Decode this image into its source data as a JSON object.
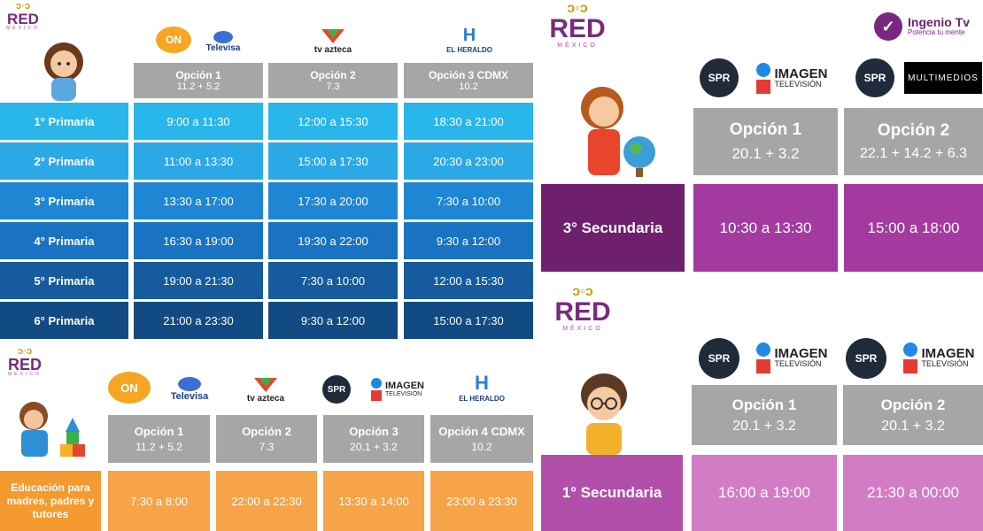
{
  "brand": {
    "red_word": "RED",
    "red_sub": "MÉXICO",
    "ingenio_title": "Ingenio Tv",
    "ingenio_tagline": "Potencia tu mente"
  },
  "channels": {
    "televisa": "Televisa",
    "tvazteca": "tv azteca",
    "heraldo": "EL HERALDO",
    "imagen_line1": "IMAGEN",
    "imagen_line2": "TELEVISIÓN",
    "multimedios": "MULTIMEDIOS",
    "spr": "SPR"
  },
  "primaria": {
    "headers": [
      {
        "title": "Opción 1",
        "sub": "11.2  +  5.2"
      },
      {
        "title": "Opción 2",
        "sub": "7.3"
      },
      {
        "title": "Opción 3 CDMX",
        "sub": "10.2"
      }
    ],
    "rows": [
      {
        "label": "1° Primaria",
        "times": [
          "9:00 a 11:30",
          "12:00 a 15:30",
          "18:30 a 21:00"
        ]
      },
      {
        "label": "2° Primaria",
        "times": [
          "11:00 a 13:30",
          "15:00 a 17:30",
          "20:30 a 23:00"
        ]
      },
      {
        "label": "3° Primaria",
        "times": [
          "13:30 a 17:00",
          "17:30 a 20:00",
          "7:30 a 10:00"
        ]
      },
      {
        "label": "4° Primaria",
        "times": [
          "16:30 a 19:00",
          "19:30 a 22:00",
          "9:30 a 12:00"
        ]
      },
      {
        "label": "5° Primaria",
        "times": [
          "19:00 a 21:30",
          "7:30 a 10:00",
          "12:00 a 15:30"
        ]
      },
      {
        "label": "6° Primaria",
        "times": [
          "21:00 a 23:30",
          "9:30 a 12:00",
          "15:00 a 17:30"
        ]
      }
    ],
    "colors": [
      "#29b6ea",
      "#29b6ea",
      "#1f8fd4",
      "#1f8fd4",
      "#14548a",
      "#14548a"
    ]
  },
  "padres": {
    "headers": [
      {
        "title": "Opción 1",
        "sub": "11.2  +  5.2"
      },
      {
        "title": "Opción 2",
        "sub": "7.3"
      },
      {
        "title": "Opción 3",
        "sub": "20.1  +  3.2"
      },
      {
        "title": "Opción 4 CDMX",
        "sub": "10.2"
      }
    ],
    "label": "Educación para madres, padres y tutores",
    "times": [
      "7:30 a 8:00",
      "22:00 a 22:30",
      "13:30 a 14:00",
      "23:00 a 23:30"
    ],
    "color": "#f7a348"
  },
  "sec3": {
    "headers": [
      {
        "title": "Opción 1",
        "sub": "20.1  +  3.2"
      },
      {
        "title": "Opción 2",
        "sub": "22.1 + 14.2  + 6.3"
      }
    ],
    "label": "3° Secundaria",
    "times": [
      "10:30 a 13:30",
      "15:00 a 18:00"
    ],
    "label_color": "#6e1f6e",
    "cell_color": "#a23aa0"
  },
  "sec1": {
    "headers": [
      {
        "title": "Opción 1",
        "sub": "20.1  +  3.2"
      },
      {
        "title": "Opción 2",
        "sub": "20.1  +  3.2"
      }
    ],
    "label": "1° Secundaria",
    "times": [
      "16:00 a 19:00",
      "21:30 a 00:00"
    ],
    "label_color": "#b24faa",
    "cell_color": "#d27cc6"
  }
}
